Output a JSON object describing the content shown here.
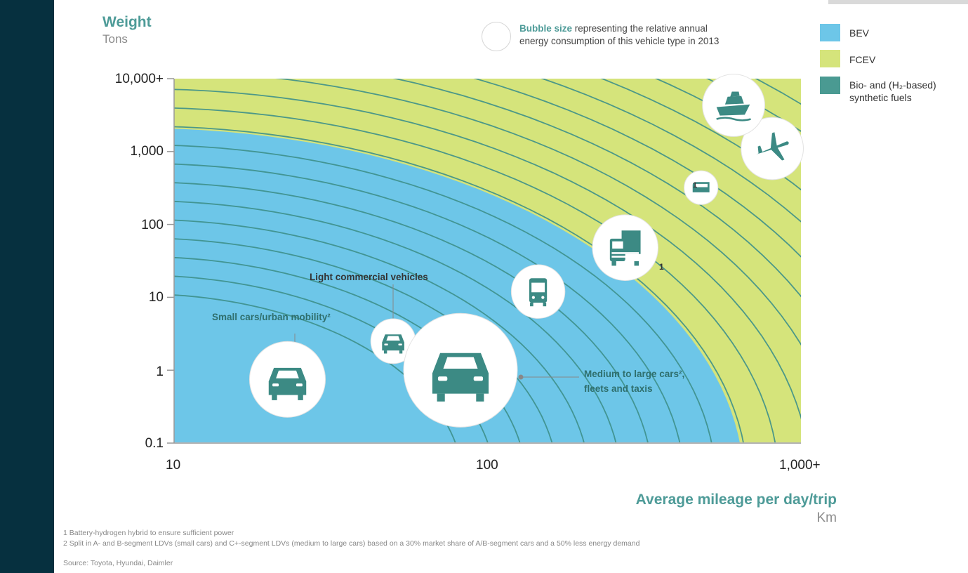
{
  "chart_data": {
    "type": "bubble",
    "y_title": "Weight",
    "y_unit": "Tons",
    "x_title": "Average mileage per day/trip",
    "x_unit": "Km",
    "x_scale": "log",
    "y_scale": "log",
    "x_range": [
      10,
      1000
    ],
    "y_range": [
      0.1,
      10000
    ],
    "x_ticks": [
      {
        "value": 10,
        "label": "10"
      },
      {
        "value": 100,
        "label": "100"
      },
      {
        "value": 1000,
        "label": "1,000+"
      }
    ],
    "y_ticks": [
      {
        "value": 10000,
        "label": "10,000+"
      },
      {
        "value": 1000,
        "label": "1,000"
      },
      {
        "value": 100,
        "label": "100"
      },
      {
        "value": 10,
        "label": "10"
      },
      {
        "value": 1,
        "label": "1"
      },
      {
        "value": 0.1,
        "label": "0.1"
      }
    ],
    "bubble_size_note": {
      "bold": "Bubble size",
      "line1": " representing the relative annual",
      "line2": "energy consumption of this vehicle type in 2013"
    },
    "legend": [
      {
        "name": "BEV",
        "color": "#6dc6e8"
      },
      {
        "name": "FCEV",
        "color": "#d5e47b"
      },
      {
        "name": "Bio- and (H2-based) synthetic fuels",
        "line1": "Bio- and (H₂-based)",
        "line2": "synthetic fuels",
        "color": "#4a9a92"
      }
    ],
    "bubbles": [
      {
        "name": "Small cars/urban mobility",
        "icon": "car-icon",
        "x": 23,
        "y": 0.75,
        "relative_size": 0.4
      },
      {
        "name": "Light commercial vehicles",
        "icon": "van-icon",
        "x": 50,
        "y": 2.5,
        "relative_size": 0.14
      },
      {
        "name": "Medium to large cars, fleets and taxis",
        "icon": "car-icon",
        "x": 82,
        "y": 1.0,
        "relative_size": 0.9
      },
      {
        "name": "Bus",
        "icon": "bus-icon",
        "x": 145,
        "y": 12,
        "relative_size": 0.2
      },
      {
        "name": "Truck",
        "icon": "truck-icon",
        "x": 275,
        "y": 48,
        "relative_size": 0.3,
        "footnote": "1"
      },
      {
        "name": "Train",
        "icon": "train-icon",
        "x": 480,
        "y": 320,
        "relative_size": 0.08,
        "footnote": "1"
      },
      {
        "name": "Plane",
        "icon": "plane-icon",
        "x": 810,
        "y": 1100,
        "relative_size": 0.27
      },
      {
        "name": "Ship",
        "icon": "ship-icon",
        "x": 610,
        "y": 4300,
        "relative_size": 0.27
      }
    ]
  },
  "annotations": {
    "small_cars": "Small cars/urban mobility²",
    "lcv": "Light commercial vehicles",
    "medium_cars_line1": "Medium to large cars²,",
    "medium_cars_line2": "fleets and taxis",
    "footnote_marker": "1"
  },
  "footnotes": {
    "note1": "1 Battery-hydrogen hybrid to ensure sufficient power",
    "note2": "2 Split in A- and B-segment LDVs (small cars) and C+-segment LDVs (medium to large cars) based on a 30% market share of A/B-segment cars and a 50% less energy demand",
    "source": "Source: Toyota, Hyundai, Daimler"
  },
  "colors": {
    "bev": "#6dc6e8",
    "fcev": "#d5e47b",
    "synthetic": "#4a9a92",
    "title_teal": "#4e9b98",
    "left_bar": "#06303f"
  }
}
